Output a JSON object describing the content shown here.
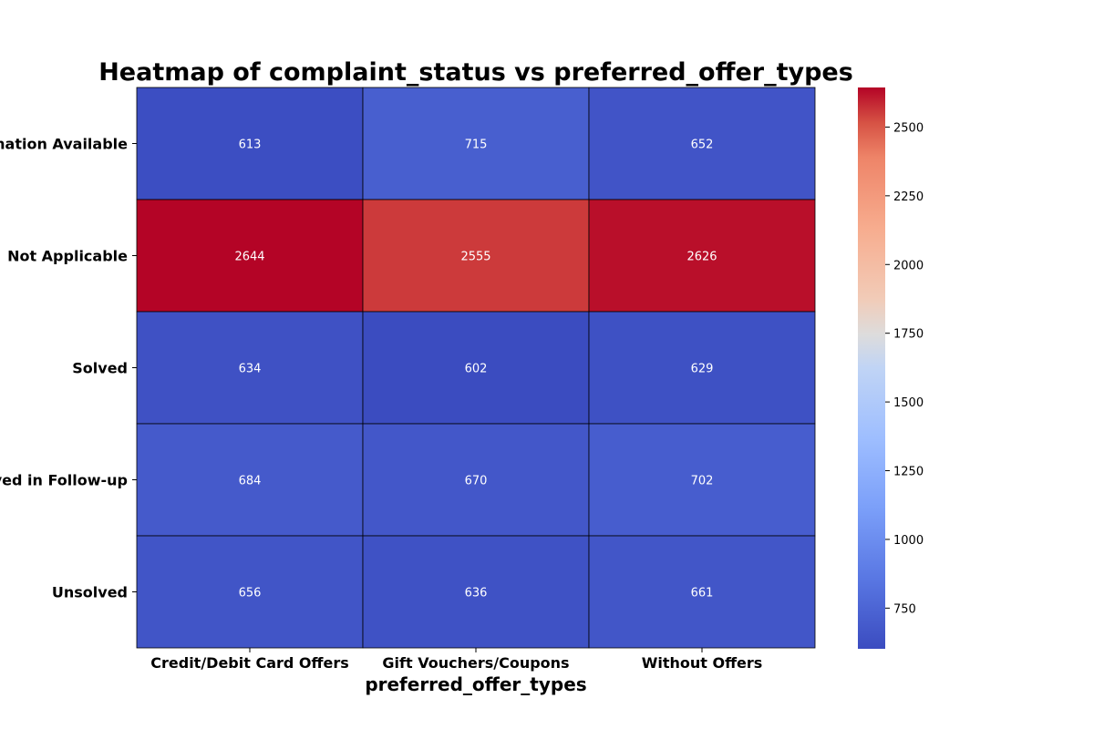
{
  "chart_data": {
    "type": "heatmap",
    "title": "Heatmap of complaint_status vs preferred_offer_types",
    "xlabel": "preferred_offer_types",
    "ylabel": "",
    "x_categories": [
      "Credit/Debit Card Offers",
      "Gift Vouchers/Coupons",
      "Without Offers"
    ],
    "y_categories": [
      "No Information Available",
      "Not Applicable",
      "Solved",
      "Solved in Follow-up",
      "Unsolved"
    ],
    "values": [
      [
        613,
        715,
        652
      ],
      [
        2644,
        2555,
        2626
      ],
      [
        634,
        602,
        629
      ],
      [
        684,
        670,
        702
      ],
      [
        656,
        636,
        661
      ]
    ],
    "colormap": "coolwarm",
    "color_range": [
      602,
      2644
    ],
    "colorbar_ticks": [
      750,
      1000,
      1250,
      1500,
      1750,
      2000,
      2250,
      2500
    ],
    "annotations": true,
    "cell_border_color": "#000000"
  }
}
